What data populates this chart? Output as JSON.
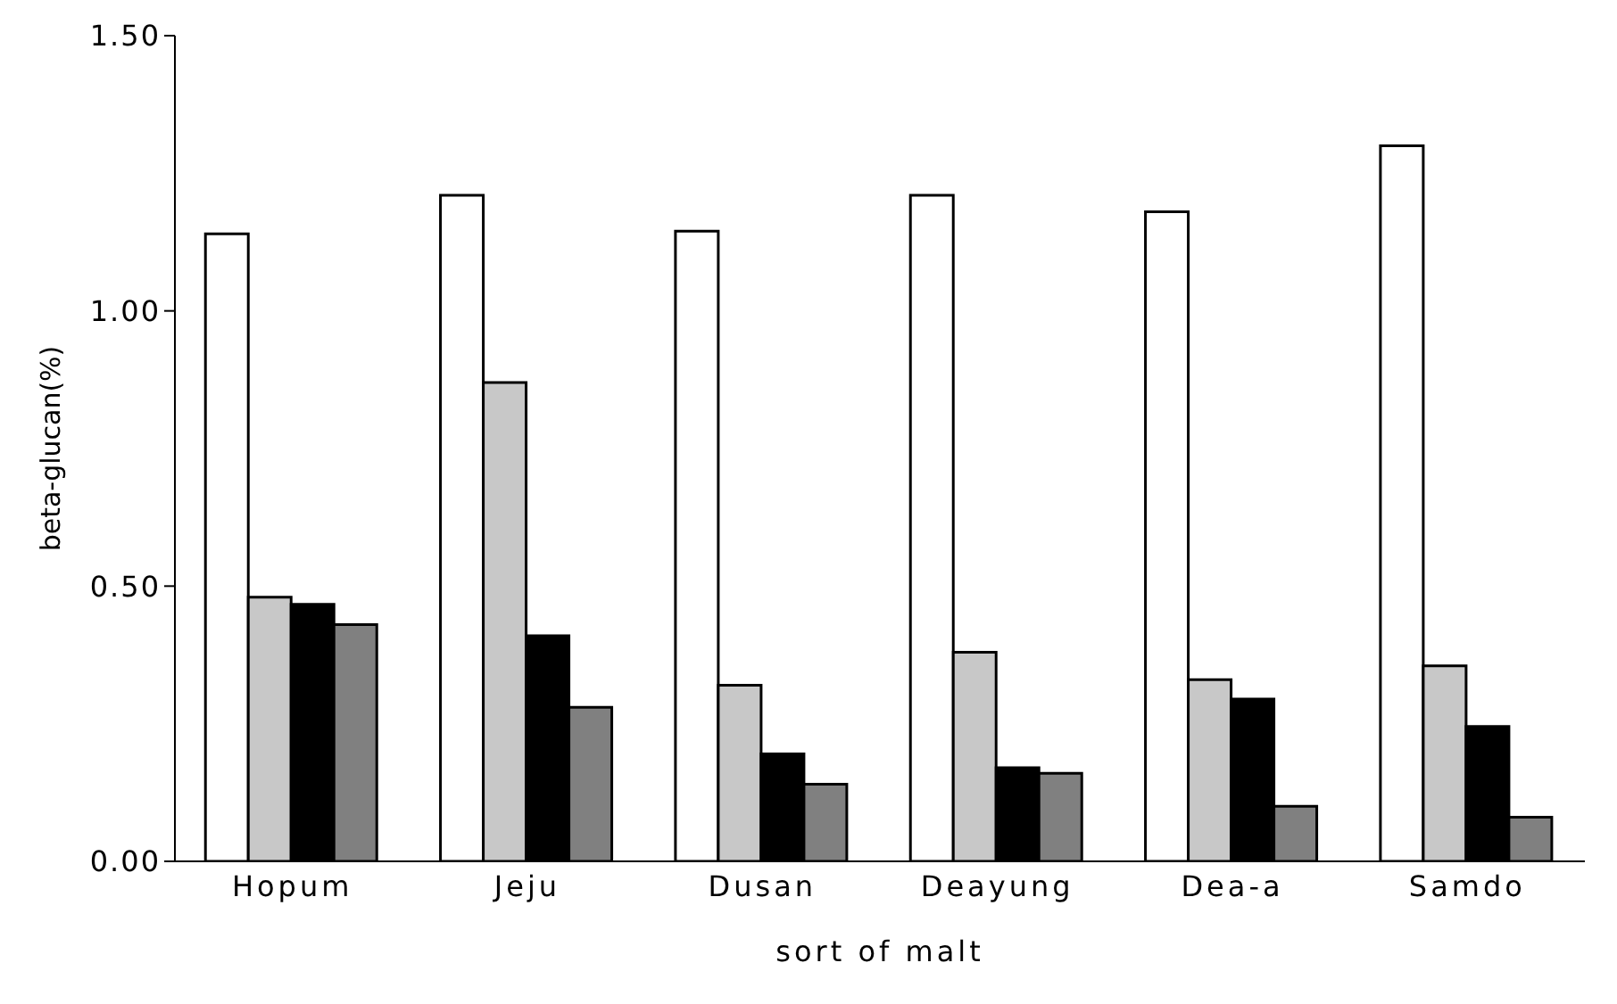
{
  "chart_data": {
    "type": "bar",
    "xlabel": "sort of malt",
    "ylabel": "beta-glucan(%)",
    "categories": [
      "Hopum",
      "Jeju",
      "Dusan",
      "Deayung",
      "Dea-a",
      "Samdo"
    ],
    "series": [
      {
        "color": "#ffffff",
        "values": [
          1.14,
          1.21,
          1.145,
          1.21,
          1.18,
          1.3
        ]
      },
      {
        "color": "#c8c8c8",
        "values": [
          0.48,
          0.87,
          0.32,
          0.38,
          0.33,
          0.355
        ]
      },
      {
        "color": "#000000",
        "values": [
          0.467,
          0.41,
          0.195,
          0.17,
          0.295,
          0.245
        ]
      },
      {
        "color": "#808080",
        "values": [
          0.43,
          0.28,
          0.14,
          0.16,
          0.1,
          0.08
        ]
      }
    ],
    "ylim": [
      0,
      1.5
    ],
    "yticks": [
      {
        "value": 0,
        "label": "0.00"
      },
      {
        "value": 0.5,
        "label": "0.50"
      },
      {
        "value": 1,
        "label": "1.00"
      },
      {
        "value": 1.5,
        "label": "1.50"
      }
    ],
    "grid": false,
    "legend": false
  }
}
